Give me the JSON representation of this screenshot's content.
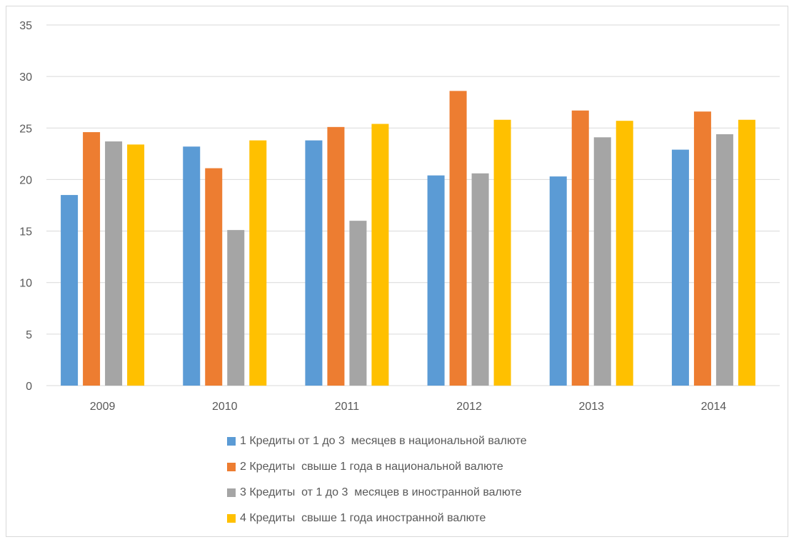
{
  "chart_data": {
    "type": "bar",
    "title": "",
    "xlabel": "",
    "ylabel": "",
    "ylim": [
      0,
      35
    ],
    "yticks": [
      0,
      5,
      10,
      15,
      20,
      25,
      30,
      35
    ],
    "grid": true,
    "legend_position": "bottom",
    "categories": [
      "2009",
      "2010",
      "2011",
      "2012",
      "2013",
      "2014"
    ],
    "series": [
      {
        "name": "1 Кредиты от 1 до 3  месяцев в национальной валюте",
        "color": "#5b9bd5",
        "values": [
          18.5,
          23.2,
          23.8,
          20.4,
          20.3,
          22.9
        ]
      },
      {
        "name": "2 Кредиты  свыше 1 года в национальной валюте",
        "color": "#ed7d31",
        "values": [
          24.6,
          21.1,
          25.1,
          28.6,
          26.7,
          26.6
        ]
      },
      {
        "name": "3 Кредиты  от 1 до 3  месяцев в иностранной валюте",
        "color": "#a5a5a5",
        "values": [
          23.7,
          15.1,
          16.0,
          20.6,
          24.1,
          24.4
        ]
      },
      {
        "name": "4 Кредиты  свыше 1 года иностранной валюте",
        "color": "#ffc000",
        "values": [
          23.4,
          23.8,
          25.4,
          25.8,
          25.7,
          25.8
        ]
      }
    ]
  }
}
